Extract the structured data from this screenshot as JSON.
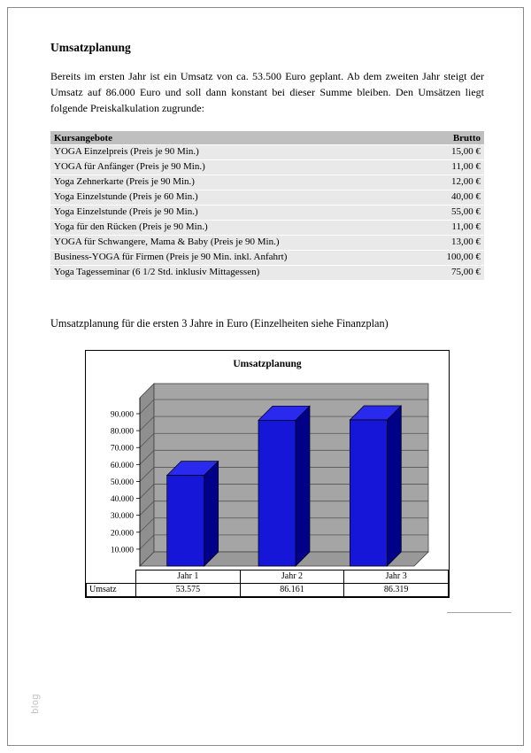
{
  "document": {
    "heading": "Umsatzplanung",
    "intro": "Bereits im ersten Jahr ist ein Umsatz von ca. 53.500 Euro geplant. Ab dem zweiten Jahr steigt der Umsatz auf 86.000 Euro und soll dann konstant bei dieser Summe bleiben. Den Umsätzen liegt folgende Preiskalkulation zugrunde:",
    "chart_caption": "Umsatzplanung für die ersten 3 Jahre in Euro (Einzelheiten siehe Finanzplan)",
    "watermark": "blog"
  },
  "pricing_table": {
    "headers": {
      "left": "Kursangebote",
      "right": "Brutto"
    },
    "rows": [
      {
        "kurs": "YOGA Einzelpreis (Preis je 90 Min.)",
        "brutto": "15,00 €"
      },
      {
        "kurs": "YOGA  für Anfänger (Preis je 90 Min.)",
        "brutto": "11,00 €"
      },
      {
        "kurs": "Yoga Zehnerkarte (Preis je 90 Min.)",
        "brutto": "12,00 €"
      },
      {
        "kurs": "Yoga Einzelstunde (Preis je 60 Min.)",
        "brutto": "40,00 €"
      },
      {
        "kurs": "Yoga Einzelstunde (Preis je 90 Min.)",
        "brutto": "55,00 €"
      },
      {
        "kurs": "Yoga für den Rücken  (Preis je 90 Min.)",
        "brutto": "11,00 €"
      },
      {
        "kurs": "YOGA für Schwangere, Mama & Baby (Preis je 90 Min.)",
        "brutto": "13,00 €"
      },
      {
        "kurs": "Business-YOGA für Firmen (Preis je 90 Min. inkl. Anfahrt)",
        "brutto": "100,00 €"
      },
      {
        "kurs": "Yoga Tagesseminar (6 1/2 Std. inklusiv Mittagessen)",
        "brutto": "75,00 €"
      }
    ]
  },
  "chart_data": {
    "type": "bar",
    "style": "3d-column",
    "title": "Umsatzplanung",
    "categories": [
      "Jahr 1",
      "Jahr 2",
      "Jahr 3"
    ],
    "series": [
      {
        "name": "Umsatz",
        "values": [
          53575,
          86161,
          86319
        ]
      }
    ],
    "value_labels": [
      "53.575",
      "86.161",
      "86.319"
    ],
    "y_ticks": [
      {
        "v": 90000,
        "label": "90.000"
      },
      {
        "v": 80000,
        "label": "80.000"
      },
      {
        "v": 70000,
        "label": "70.000"
      },
      {
        "v": 60000,
        "label": "60.000"
      },
      {
        "v": 50000,
        "label": "50.000"
      },
      {
        "v": 40000,
        "label": "40.000"
      },
      {
        "v": 30000,
        "label": "30.000"
      },
      {
        "v": 20000,
        "label": "20.000"
      },
      {
        "v": 10000,
        "label": "10.000"
      }
    ],
    "ylim": [
      0,
      100000
    ],
    "grid": true,
    "legend_position": "none",
    "data_table": true,
    "colors": {
      "bar_front": "#1616d9",
      "bar_top": "#2a2aef",
      "bar_side": "#000088",
      "wall": "#a5a5a5",
      "side_wall": "#8f8f8f",
      "floor": "#999999",
      "gridline": "#555555",
      "edge": "#404040"
    }
  }
}
